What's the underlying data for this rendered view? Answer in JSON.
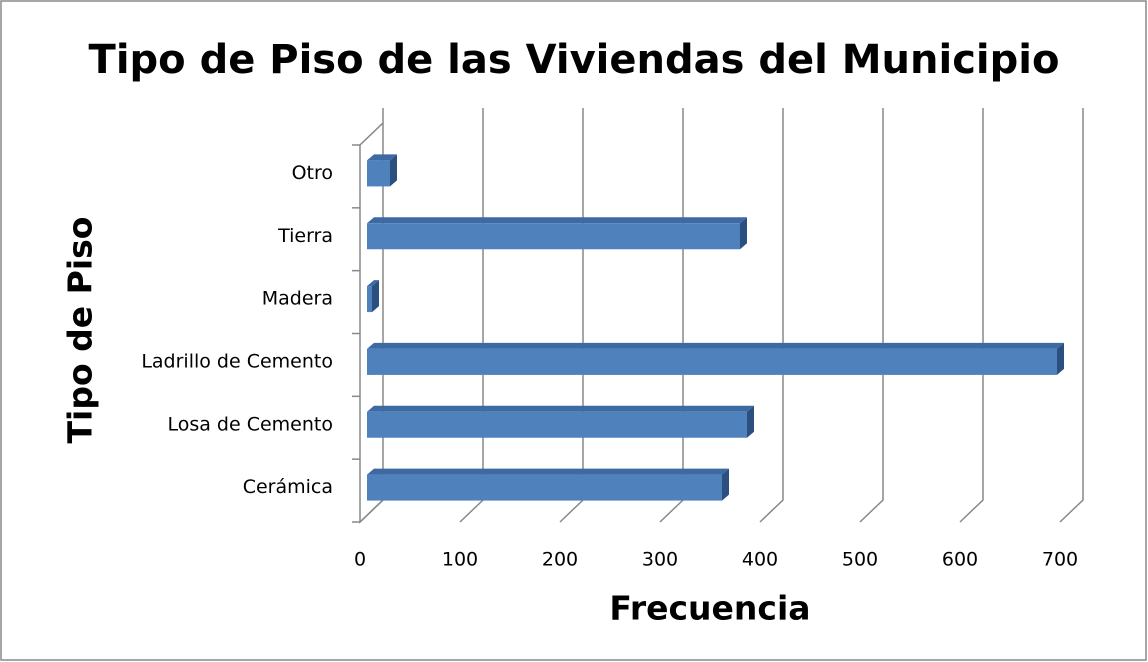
{
  "chart_data": {
    "type": "bar",
    "orientation": "horizontal",
    "title": "Tipo de Piso de las Viviendas del Municipio",
    "xlabel": "Frecuencia",
    "ylabel": "Tipo de Piso",
    "categories": [
      "Cerámica",
      "Losa de Cemento",
      "Ladrillo de Cemento",
      "Madera",
      "Tierra",
      "Otro"
    ],
    "values": [
      355,
      380,
      690,
      5,
      373,
      23
    ],
    "color": "#4f81bd",
    "xlim": [
      0,
      700
    ],
    "xticks": [
      0,
      100,
      200,
      300,
      400,
      500,
      600,
      700
    ],
    "grid": true
  }
}
